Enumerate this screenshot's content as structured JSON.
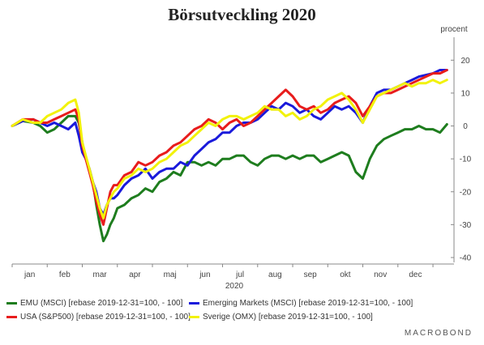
{
  "header": {
    "title": "Börsutveckling 2020"
  },
  "legend": [
    {
      "label": "EMU (MSCI) [rebase 2019-12-31=100, - 100]",
      "color": "#1e7d1e"
    },
    {
      "label": "Emerging Markets (MSCI) [rebase 2019-12-31=100, - 100]",
      "color": "#1a1adb"
    },
    {
      "label": "USA (S&P500) [rebase 2019-12-31=100, - 100]",
      "color": "#e81c1c"
    },
    {
      "label": "Sverige (OMX) [rebase 2019-12-31=100, - 100]",
      "color": "#f2f20a"
    }
  ],
  "footer": {
    "brand": "MACROBOND"
  },
  "chart_data": {
    "type": "line",
    "title": "Börsutveckling 2020",
    "xlabel": "2020",
    "ylabel": "procent",
    "ylim": [
      -40,
      25
    ],
    "yticks": [
      -40,
      -30,
      -20,
      -10,
      0,
      10,
      20
    ],
    "xlim": [
      0,
      12.6
    ],
    "xticks": [
      "jan",
      "feb",
      "mar",
      "apr",
      "maj",
      "jun",
      "jul",
      "aug",
      "sep",
      "okt",
      "nov",
      "dec"
    ],
    "grid": false,
    "legend_position": "bottom",
    "series": [
      {
        "name": "EMU (MSCI) [rebase 2019-12-31=100, - 100]",
        "color": "#1e7d1e",
        "x": [
          0,
          0.3,
          0.6,
          0.8,
          1.0,
          1.2,
          1.4,
          1.6,
          1.8,
          1.9,
          2.0,
          2.1,
          2.2,
          2.3,
          2.4,
          2.5,
          2.6,
          2.7,
          2.8,
          2.9,
          3.0,
          3.2,
          3.4,
          3.6,
          3.8,
          4.0,
          4.2,
          4.4,
          4.6,
          4.8,
          5.0,
          5.2,
          5.4,
          5.6,
          5.8,
          6.0,
          6.2,
          6.4,
          6.6,
          6.8,
          7.0,
          7.2,
          7.4,
          7.6,
          7.8,
          8.0,
          8.2,
          8.4,
          8.6,
          8.8,
          9.0,
          9.2,
          9.4,
          9.6,
          9.8,
          10.0,
          10.2,
          10.4,
          10.6,
          10.8,
          11.0,
          11.2,
          11.4,
          11.6,
          11.8,
          12.0,
          12.2,
          12.4
        ],
        "y": [
          0,
          1.5,
          1,
          0,
          -2,
          -1,
          1,
          3,
          3,
          1,
          -5,
          -10,
          -13,
          -17,
          -24,
          -30,
          -35,
          -33,
          -30,
          -28,
          -25,
          -24,
          -22,
          -21,
          -19,
          -20,
          -17,
          -16,
          -14,
          -15,
          -11,
          -11,
          -12,
          -11,
          -12,
          -10,
          -10,
          -9,
          -9,
          -11,
          -12,
          -10,
          -9,
          -9,
          -10,
          -9,
          -10,
          -9,
          -9,
          -11,
          -10,
          -9,
          -8,
          -9,
          -14,
          -16,
          -10,
          -6,
          -4,
          -3,
          -2,
          -1,
          -1,
          0,
          -1,
          -1,
          -2,
          0.5
        ]
      },
      {
        "name": "Emerging Markets (MSCI) [rebase 2019-12-31=100, - 100]",
        "color": "#1a1adb",
        "x": [
          0,
          0.3,
          0.6,
          0.8,
          1.0,
          1.2,
          1.4,
          1.6,
          1.8,
          1.9,
          2.0,
          2.1,
          2.2,
          2.3,
          2.4,
          2.5,
          2.6,
          2.7,
          2.8,
          2.9,
          3.0,
          3.2,
          3.4,
          3.6,
          3.8,
          4.0,
          4.2,
          4.4,
          4.6,
          4.8,
          5.0,
          5.2,
          5.4,
          5.6,
          5.8,
          6.0,
          6.2,
          6.4,
          6.6,
          6.8,
          7.0,
          7.2,
          7.4,
          7.6,
          7.8,
          8.0,
          8.2,
          8.4,
          8.6,
          8.8,
          9.0,
          9.2,
          9.4,
          9.6,
          9.8,
          10.0,
          10.2,
          10.4,
          10.6,
          10.8,
          11.0,
          11.2,
          11.4,
          11.6,
          11.8,
          12.0,
          12.2,
          12.4
        ],
        "y": [
          0,
          1.5,
          2,
          1,
          0,
          1,
          0,
          -1,
          1,
          -3,
          -8,
          -10,
          -13,
          -17,
          -20,
          -25,
          -27,
          -24,
          -22,
          -22,
          -21,
          -18,
          -16,
          -15,
          -13,
          -16,
          -14,
          -13,
          -13,
          -11,
          -12,
          -9,
          -7,
          -5,
          -4,
          -2,
          -2,
          0,
          1,
          1,
          2,
          4,
          6,
          5,
          7,
          6,
          4,
          5,
          3,
          2,
          4,
          6,
          5,
          6,
          4,
          1,
          6,
          10,
          11,
          11,
          12,
          13,
          14,
          15,
          15.5,
          16,
          17,
          17
        ]
      },
      {
        "name": "USA (S&P500) [rebase 2019-12-31=100, - 100]",
        "color": "#e81c1c",
        "x": [
          0,
          0.3,
          0.6,
          0.8,
          1.0,
          1.2,
          1.4,
          1.6,
          1.8,
          1.9,
          2.0,
          2.1,
          2.2,
          2.3,
          2.4,
          2.5,
          2.6,
          2.7,
          2.8,
          2.9,
          3.0,
          3.2,
          3.4,
          3.6,
          3.8,
          4.0,
          4.2,
          4.4,
          4.6,
          4.8,
          5.0,
          5.2,
          5.4,
          5.6,
          5.8,
          6.0,
          6.2,
          6.4,
          6.6,
          6.8,
          7.0,
          7.2,
          7.4,
          7.6,
          7.8,
          8.0,
          8.2,
          8.4,
          8.6,
          8.8,
          9.0,
          9.2,
          9.4,
          9.6,
          9.8,
          10.0,
          10.2,
          10.4,
          10.6,
          10.8,
          11.0,
          11.2,
          11.4,
          11.6,
          11.8,
          12.0,
          12.2,
          12.4
        ],
        "y": [
          0,
          2,
          2,
          1,
          1,
          2,
          3,
          4,
          5,
          2,
          -6,
          -10,
          -14,
          -18,
          -23,
          -27,
          -30,
          -25,
          -20,
          -18,
          -18,
          -15,
          -14,
          -11,
          -12,
          -11,
          -9,
          -8,
          -6,
          -5,
          -3,
          -1,
          0,
          2,
          1,
          -1,
          1,
          2,
          0,
          1,
          3,
          5,
          7,
          9,
          11,
          9,
          6,
          5,
          6,
          4,
          5,
          7,
          8,
          9,
          7,
          3,
          6,
          9,
          10,
          10,
          11,
          12,
          13,
          14,
          15,
          16,
          16,
          17
        ]
      },
      {
        "name": "Sverige (OMX) [rebase 2019-12-31=100, - 100]",
        "color": "#f2f20a",
        "x": [
          0,
          0.3,
          0.6,
          0.8,
          1.0,
          1.2,
          1.4,
          1.6,
          1.8,
          1.9,
          2.0,
          2.1,
          2.2,
          2.3,
          2.4,
          2.5,
          2.6,
          2.7,
          2.8,
          2.9,
          3.0,
          3.2,
          3.4,
          3.6,
          3.8,
          4.0,
          4.2,
          4.4,
          4.6,
          4.8,
          5.0,
          5.2,
          5.4,
          5.6,
          5.8,
          6.0,
          6.2,
          6.4,
          6.6,
          6.8,
          7.0,
          7.2,
          7.4,
          7.6,
          7.8,
          8.0,
          8.2,
          8.4,
          8.6,
          8.8,
          9.0,
          9.2,
          9.4,
          9.6,
          9.8,
          10.0,
          10.2,
          10.4,
          10.6,
          10.8,
          11.0,
          11.2,
          11.4,
          11.6,
          11.8,
          12.0,
          12.2,
          12.4
        ],
        "y": [
          0,
          2,
          1,
          1,
          3,
          4,
          5,
          7,
          8,
          4,
          -5,
          -9,
          -13,
          -17,
          -21,
          -25,
          -28,
          -24,
          -22,
          -20,
          -19,
          -16,
          -15,
          -13,
          -14,
          -13,
          -11,
          -10,
          -8,
          -6,
          -5,
          -3,
          -1,
          1,
          0,
          2,
          3,
          3,
          2,
          3,
          4,
          6,
          5,
          5,
          3,
          4,
          2,
          3,
          5,
          6,
          8,
          9,
          10,
          8,
          5,
          1,
          5,
          9,
          10,
          11,
          12,
          13,
          12,
          13,
          13,
          14,
          13,
          14
        ]
      }
    ]
  }
}
